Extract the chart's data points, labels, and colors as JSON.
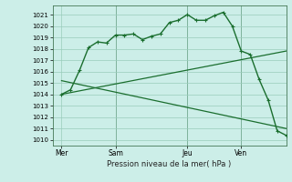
{
  "bg_color": "#cceee8",
  "grid_color": "#99ccbb",
  "line_color": "#1a6e2e",
  "xlabel": "Pression niveau de la mer( hPa )",
  "ylim": [
    1009.5,
    1021.8
  ],
  "yticks": [
    1010,
    1011,
    1012,
    1013,
    1014,
    1015,
    1016,
    1017,
    1018,
    1019,
    1020,
    1021
  ],
  "day_labels": [
    "Mer",
    "Sam",
    "Jeu",
    "Ven"
  ],
  "day_positions": [
    0,
    24,
    56,
    80
  ],
  "xlim": [
    -4,
    100
  ],
  "line1_x": [
    0,
    4,
    8,
    12,
    16,
    20,
    24,
    28,
    32,
    36,
    40,
    44,
    48,
    52,
    56,
    60,
    64,
    68,
    72,
    76,
    80,
    84,
    88,
    92,
    96,
    100
  ],
  "line1_y": [
    1014.0,
    1014.4,
    1016.1,
    1018.1,
    1018.6,
    1018.5,
    1019.2,
    1019.2,
    1019.3,
    1018.8,
    1019.1,
    1019.3,
    1020.3,
    1020.5,
    1021.0,
    1020.5,
    1020.5,
    1020.9,
    1021.2,
    1020.0,
    1017.8,
    1017.5,
    1015.3,
    1013.5,
    1010.8,
    1010.4
  ],
  "line2_x": [
    0,
    100
  ],
  "line2_y": [
    1014.0,
    1017.8
  ],
  "line3_x": [
    0,
    100
  ],
  "line3_y": [
    1015.2,
    1011.0
  ],
  "vline_positions": [
    24,
    56,
    80
  ]
}
